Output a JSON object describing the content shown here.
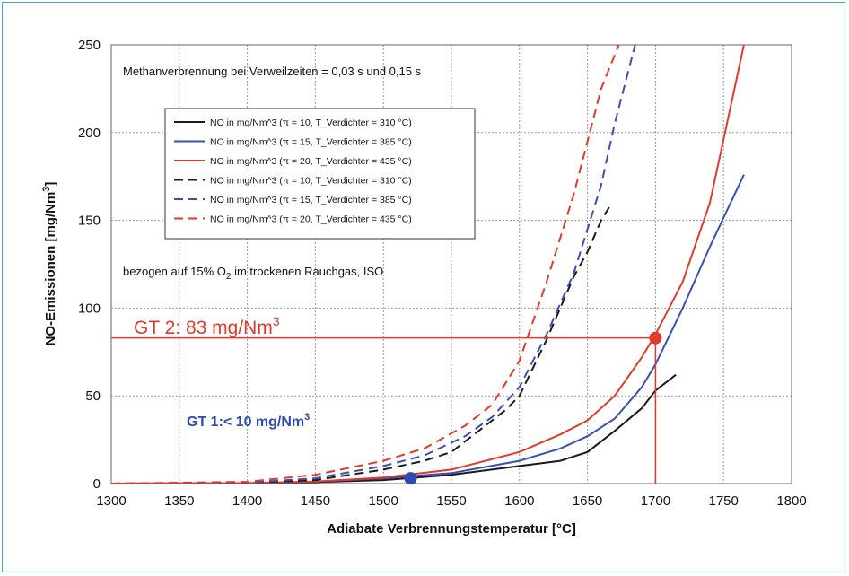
{
  "chart_data": {
    "type": "line",
    "xlabel": "Adiabate Verbrennungstemperatur  [°C]",
    "ylabel_main": "NO-Emissionen [mg/Nm",
    "ylabel_sup": "3",
    "ylabel_close": "]",
    "xlim": [
      1300,
      1800
    ],
    "ylim": [
      0,
      250
    ],
    "xticks": [
      "1300",
      "1350",
      "1400",
      "1450",
      "1500",
      "1550",
      "1600",
      "1650",
      "1700",
      "1750",
      "1800"
    ],
    "yticks": [
      "0",
      "50",
      "100",
      "150",
      "200",
      "250"
    ],
    "grid": true,
    "legend_position": "upper-left",
    "annotations": {
      "top": "Methanverbrennung bei Verweilzeiten = 0,03 s und 0,15 s",
      "ref_pre": "bezogen auf 15% O",
      "ref_sub": "2",
      "ref_post": " im trockenen Rauchgas, ISO",
      "gt2_main": "GT 2:  83 mg/Nm",
      "gt2_sup": "3",
      "gt1_main": "GT 1:< 10 mg/Nm",
      "gt1_sup": "3"
    },
    "markers": [
      {
        "name": "GT 2",
        "x": 1700,
        "y": 83,
        "color": "#e03a2a"
      },
      {
        "name": "GT 1",
        "x": 1520,
        "y": 3,
        "color": "#2e49b2"
      }
    ],
    "series": [
      {
        "name": "NO in mg/Nm^3 (π = 10, T_Verdichter = 310 °C)",
        "color": "#1a1a1a",
        "dash": false,
        "x": [
          1400,
          1450,
          1500,
          1550,
          1600,
          1630,
          1650,
          1670,
          1690,
          1700,
          1715
        ],
        "y": [
          0.2,
          0.8,
          2,
          5,
          10,
          13,
          18,
          30,
          43,
          53,
          62
        ]
      },
      {
        "name": "NO in mg/Nm^3 (π = 15, T_Verdichter = 385 °C)",
        "color": "#3a4fb2",
        "dash": false,
        "x": [
          1400,
          1450,
          1500,
          1550,
          1600,
          1630,
          1650,
          1670,
          1690,
          1700,
          1720,
          1740,
          1765
        ],
        "y": [
          0.2,
          1,
          3,
          6,
          13,
          20,
          27,
          37,
          55,
          68,
          100,
          135,
          176
        ]
      },
      {
        "name": "NO in mg/Nm^3 (π = 20, T_Verdichter = 435 °C)",
        "color": "#e03a2a",
        "dash": false,
        "x": [
          1400,
          1450,
          1500,
          1550,
          1600,
          1630,
          1650,
          1670,
          1690,
          1700,
          1720,
          1740,
          1765
        ],
        "y": [
          0.3,
          1.2,
          3.5,
          8,
          18,
          28,
          36,
          50,
          72,
          85,
          115,
          160,
          250
        ]
      },
      {
        "name": "NO in mg/Nm^3 (π = 10, T_Verdichter = 310 °C)",
        "color": "#1a1a1a",
        "dash": true,
        "x": [
          1400,
          1450,
          1500,
          1530,
          1550,
          1570,
          1590,
          1600,
          1620,
          1640,
          1650,
          1660,
          1668
        ],
        "y": [
          0.5,
          2,
          8,
          13,
          18,
          30,
          42,
          50,
          82,
          118,
          132,
          150,
          160
        ]
      },
      {
        "name": "NO in mg/Nm^3 (π = 15, T_Verdichter = 385 °C)",
        "color": "#3a4fb2",
        "dash": true,
        "x": [
          1400,
          1450,
          1500,
          1530,
          1560,
          1580,
          1600,
          1620,
          1640,
          1660,
          1670,
          1685
        ],
        "y": [
          0.5,
          3,
          10,
          16,
          27,
          38,
          55,
          85,
          120,
          170,
          205,
          250
        ]
      },
      {
        "name": "NO in mg/Nm^3 (π = 20, T_Verdichter = 435 °C)",
        "color": "#e03a2a",
        "dash": true,
        "x": [
          1400,
          1450,
          1500,
          1530,
          1560,
          1580,
          1600,
          1620,
          1640,
          1650,
          1660,
          1673
        ],
        "y": [
          1,
          5,
          13,
          20,
          33,
          45,
          70,
          115,
          165,
          195,
          225,
          250
        ]
      }
    ]
  }
}
